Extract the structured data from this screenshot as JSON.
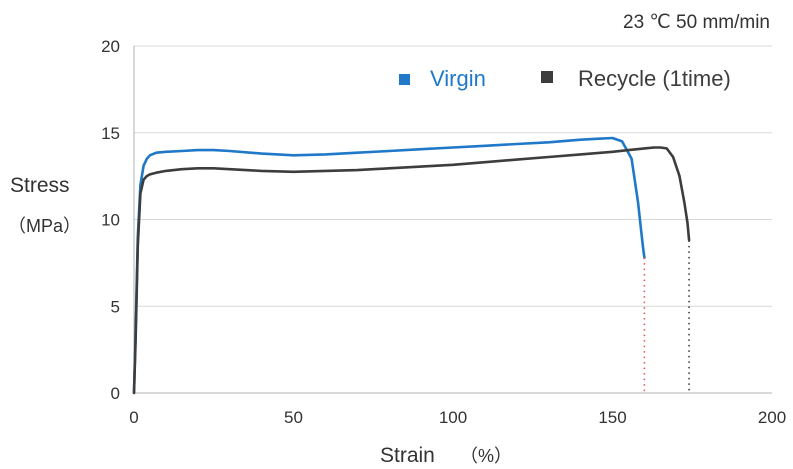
{
  "chart_data": {
    "type": "line",
    "annotation": "23 ℃  50 mm/min",
    "ylabel": "Stress",
    "ylabel_unit": "（MPa）",
    "xlabel": "Strain",
    "xlabel_unit": "（%）",
    "xlim": [
      0,
      200
    ],
    "ylim": [
      0,
      20
    ],
    "x_ticks": [
      0,
      50,
      100,
      150,
      200
    ],
    "y_ticks": [
      0,
      5,
      10,
      15,
      20
    ],
    "grid": "horizontal",
    "legend_position": "top-right",
    "colors": {
      "virgin": "#1f78c8",
      "recycle": "#3d3d3d",
      "grid": "#d9d9d9",
      "axis": "#b0b0b0",
      "break_virgin": "#e05a5a"
    },
    "series": [
      {
        "name": "Virgin",
        "key": "virgin",
        "x": [
          0,
          0.5,
          1.2,
          2,
          3,
          4,
          5,
          7,
          10,
          15,
          20,
          25,
          30,
          40,
          50,
          60,
          70,
          80,
          90,
          100,
          110,
          120,
          130,
          140,
          145,
          150,
          153,
          156,
          158,
          159.5,
          160
        ],
        "y": [
          0,
          3.5,
          9,
          12,
          13.1,
          13.5,
          13.7,
          13.85,
          13.9,
          13.95,
          14.0,
          14.0,
          13.95,
          13.8,
          13.7,
          13.75,
          13.85,
          13.95,
          14.05,
          14.15,
          14.25,
          14.35,
          14.45,
          14.6,
          14.65,
          14.7,
          14.5,
          13.5,
          11,
          8.5,
          7.8
        ]
      },
      {
        "name": "Recycle (1time)",
        "key": "recycle",
        "x": [
          0,
          0.5,
          1.2,
          2,
          3,
          4,
          5,
          7,
          10,
          15,
          20,
          25,
          30,
          40,
          50,
          60,
          70,
          80,
          90,
          100,
          110,
          120,
          130,
          140,
          150,
          155,
          160,
          163,
          165,
          167,
          169,
          171,
          172.5,
          173.5,
          174
        ],
        "y": [
          0,
          3,
          8.5,
          11.5,
          12.3,
          12.5,
          12.6,
          12.7,
          12.8,
          12.9,
          12.95,
          12.95,
          12.9,
          12.8,
          12.75,
          12.8,
          12.85,
          12.95,
          13.05,
          13.15,
          13.3,
          13.45,
          13.6,
          13.75,
          13.9,
          14.0,
          14.1,
          14.15,
          14.15,
          14.1,
          13.6,
          12.5,
          11,
          9.8,
          8.8
        ]
      }
    ],
    "break_lines": [
      {
        "key": "virgin",
        "x": 160,
        "y_from": 7.8,
        "y_to": 0
      },
      {
        "key": "recycle",
        "x": 174,
        "y_from": 8.8,
        "y_to": 0
      }
    ]
  }
}
